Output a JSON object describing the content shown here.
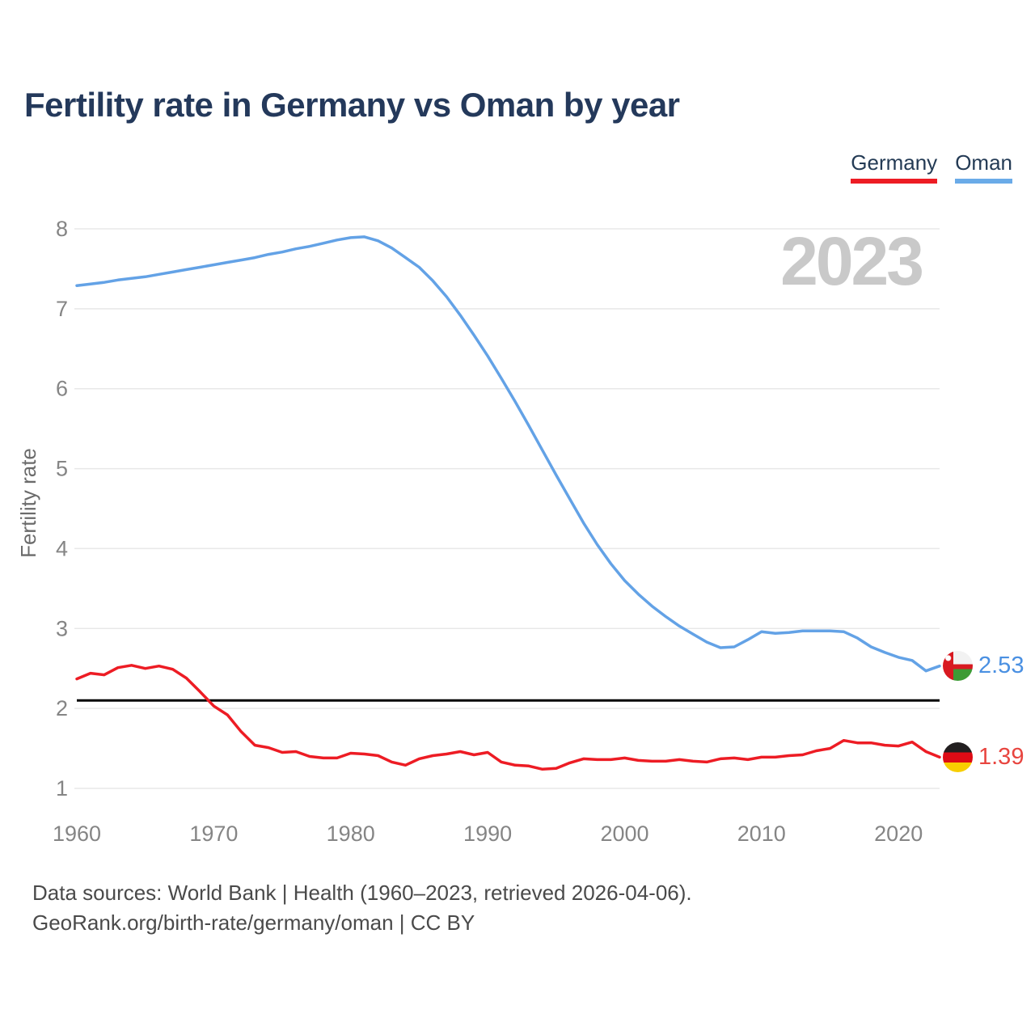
{
  "title": "Fertility rate in Germany vs Oman by year",
  "watermark": {
    "text": "2023",
    "color": "#c9c9c9"
  },
  "legend": {
    "germany": {
      "label": "Germany",
      "color": "#ed1c24"
    },
    "oman": {
      "label": "Oman",
      "color": "#6aabe8"
    }
  },
  "end_labels": {
    "oman": {
      "value": "2.53",
      "flag": "oman-flag",
      "text_color": "#4a90e2"
    },
    "germany": {
      "value": "1.39",
      "flag": "germany-flag",
      "text_color": "#e8453f"
    }
  },
  "footer": {
    "line1": "Data sources: World Bank | Health (1960–2023, retrieved 2026-04-06).",
    "line2": "GeoRank.org/birth-rate/germany/oman | CC BY"
  },
  "chart_data": {
    "type": "line",
    "title": "Fertility rate in Germany vs Oman by year",
    "ylabel": "Fertility rate",
    "xlabel": "",
    "x_range": [
      1960,
      2023
    ],
    "y_range": [
      1,
      8
    ],
    "y_ticks": [
      1,
      2,
      3,
      4,
      5,
      6,
      7,
      8
    ],
    "x_ticks": [
      1960,
      1970,
      1980,
      1990,
      2000,
      2010,
      2020
    ],
    "grid": true,
    "grid_color": "#e8e8e8",
    "tick_color": "#858585",
    "axis_title_color": "#6b6b6b",
    "legend_position": "top-right",
    "reference_line": {
      "value": 2.1,
      "color": "#000000"
    },
    "x": [
      1960,
      1961,
      1962,
      1963,
      1964,
      1965,
      1966,
      1967,
      1968,
      1969,
      1970,
      1971,
      1972,
      1973,
      1974,
      1975,
      1976,
      1977,
      1978,
      1979,
      1980,
      1981,
      1982,
      1983,
      1984,
      1985,
      1986,
      1987,
      1988,
      1989,
      1990,
      1991,
      1992,
      1993,
      1994,
      1995,
      1996,
      1997,
      1998,
      1999,
      2000,
      2001,
      2002,
      2003,
      2004,
      2005,
      2006,
      2007,
      2008,
      2009,
      2010,
      2011,
      2012,
      2013,
      2014,
      2015,
      2016,
      2017,
      2018,
      2019,
      2020,
      2021,
      2022,
      2023
    ],
    "series": [
      {
        "name": "Oman",
        "color": "#63a2e6",
        "values": [
          7.29,
          7.31,
          7.33,
          7.36,
          7.38,
          7.4,
          7.43,
          7.46,
          7.49,
          7.52,
          7.55,
          7.58,
          7.61,
          7.64,
          7.68,
          7.71,
          7.75,
          7.78,
          7.82,
          7.86,
          7.89,
          7.9,
          7.85,
          7.76,
          7.64,
          7.52,
          7.35,
          7.15,
          6.92,
          6.67,
          6.41,
          6.13,
          5.84,
          5.54,
          5.23,
          4.92,
          4.62,
          4.32,
          4.05,
          3.81,
          3.6,
          3.43,
          3.28,
          3.15,
          3.03,
          2.93,
          2.83,
          2.76,
          2.77,
          2.86,
          2.96,
          2.94,
          2.95,
          2.97,
          2.97,
          2.97,
          2.96,
          2.88,
          2.77,
          2.7,
          2.64,
          2.6,
          2.47,
          2.53
        ]
      },
      {
        "name": "Germany",
        "color": "#ed1c24",
        "values": [
          2.37,
          2.44,
          2.42,
          2.51,
          2.54,
          2.5,
          2.53,
          2.49,
          2.38,
          2.21,
          2.03,
          1.92,
          1.71,
          1.54,
          1.51,
          1.45,
          1.46,
          1.4,
          1.38,
          1.38,
          1.44,
          1.43,
          1.41,
          1.33,
          1.29,
          1.37,
          1.41,
          1.43,
          1.46,
          1.42,
          1.45,
          1.33,
          1.29,
          1.28,
          1.24,
          1.25,
          1.32,
          1.37,
          1.36,
          1.36,
          1.38,
          1.35,
          1.34,
          1.34,
          1.36,
          1.34,
          1.33,
          1.37,
          1.38,
          1.36,
          1.39,
          1.39,
          1.41,
          1.42,
          1.47,
          1.5,
          1.6,
          1.57,
          1.57,
          1.54,
          1.53,
          1.58,
          1.46,
          1.39
        ]
      }
    ]
  }
}
